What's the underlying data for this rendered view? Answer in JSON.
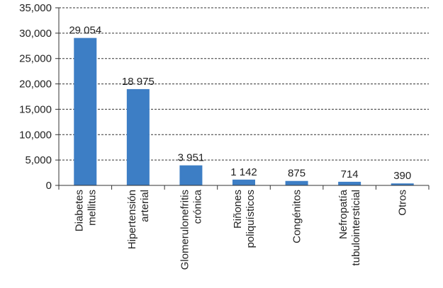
{
  "chart_data": {
    "type": "bar",
    "categories": [
      [
        "Diabetes",
        "mellitus"
      ],
      [
        "Hipertensión",
        "arterial"
      ],
      [
        "Glomerulonefritis",
        "crónica"
      ],
      [
        "Riñones",
        "poliquísticos"
      ],
      [
        "Congénitos"
      ],
      [
        "Nefropatía",
        "tubulointersticial"
      ],
      [
        "Otros"
      ]
    ],
    "values": [
      29054,
      18975,
      3951,
      1142,
      875,
      714,
      390
    ],
    "value_labels": [
      "29 054",
      "18 975",
      "3 951",
      "1 142",
      "875",
      "714",
      "390"
    ],
    "ylim": [
      0,
      35000
    ],
    "yticks": [
      0,
      5000,
      10000,
      15000,
      20000,
      25000,
      30000,
      35000
    ],
    "ytick_labels": [
      "0",
      "5,000",
      "10,000",
      "15,000",
      "20,000",
      "25,000",
      "30,000",
      "35,000"
    ],
    "grid": "horizontal dashed",
    "bar_color": "#3D7EC5"
  }
}
